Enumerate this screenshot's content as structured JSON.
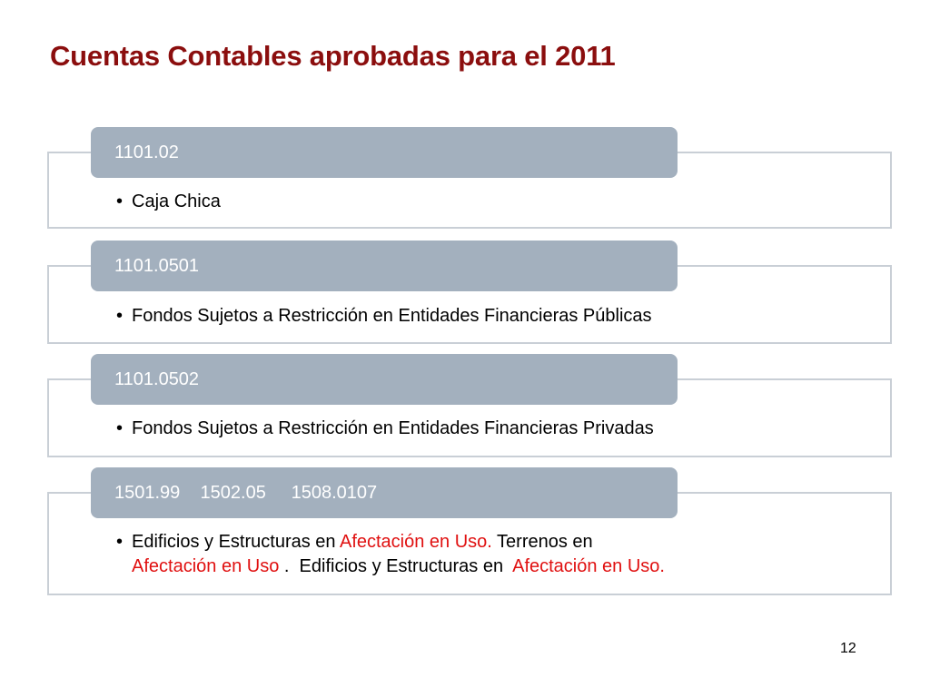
{
  "title": "Cuentas Contables aprobadas para el 2011",
  "accounts": [
    {
      "code": "1101.02",
      "description": "Caja Chica"
    },
    {
      "code": "1101.0501",
      "description": "Fondos Sujetos a Restricción en Entidades Financieras Públicas"
    },
    {
      "code": "1101.0502",
      "description": "Fondos Sujetos a Restricción en Entidades Financieras Privadas"
    },
    {
      "code": "1501.99    1502.05     1508.0107",
      "description_parts": {
        "p1": "Edificios y Estructuras en ",
        "p2": "Afectación en Uso.",
        "p3": "  Terrenos en",
        "p4": "Afectación en Uso",
        "p5": " .  Edificios y Estructuras en  ",
        "p6": "Afectación en Uso."
      }
    }
  ],
  "bullet": "•",
  "page_number": "12",
  "colors": {
    "title": "#8b0e0e",
    "header_bar": "#a3b0be",
    "box_border": "#c9cfd6",
    "highlight": "#e01010"
  }
}
